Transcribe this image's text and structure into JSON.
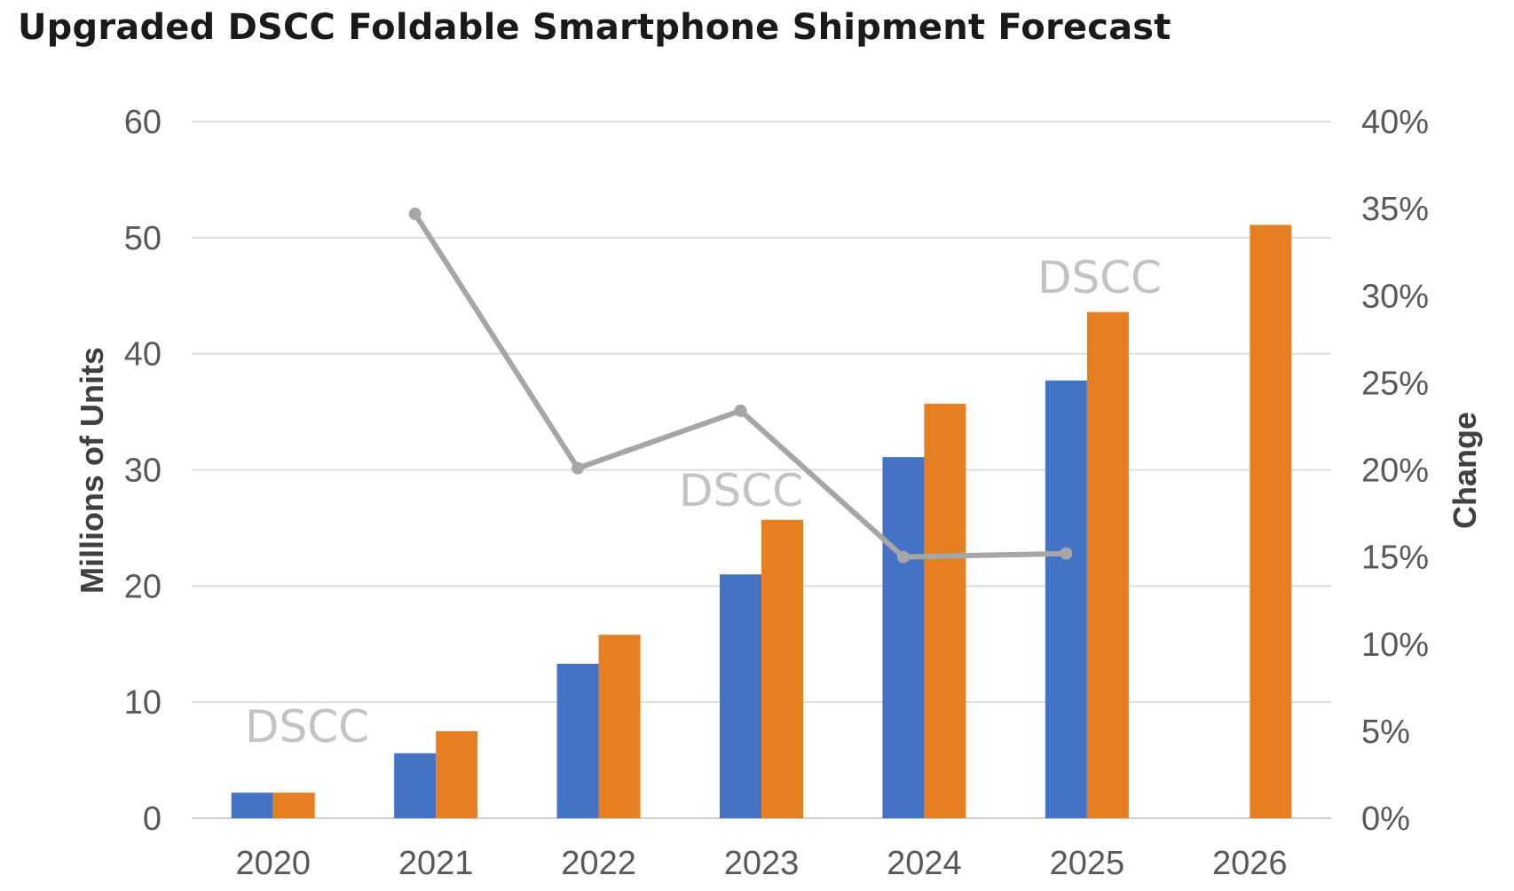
{
  "chart_data": {
    "type": "bar",
    "title": "Upgraded DSCC Foldable Smartphone Shipment Forecast",
    "categories": [
      "2020",
      "2021",
      "2022",
      "2023",
      "2024",
      "2025",
      "2026"
    ],
    "series": [
      {
        "values": [
          2.2,
          5.6,
          13.3,
          21.0,
          31.1,
          37.7,
          null
        ],
        "color": "#4472c4"
      },
      {
        "values": [
          2.2,
          7.5,
          15.8,
          25.7,
          35.7,
          43.6,
          51.1
        ],
        "color": "#e67e22"
      }
    ],
    "line_series": {
      "type": "line",
      "axis": "right",
      "color": "#a6a6a6",
      "values": [
        null,
        34.7,
        20.1,
        23.4,
        15.0,
        15.2,
        null
      ]
    },
    "ylabel": "Millions of Units",
    "y2label": "Change",
    "ylim": [
      0,
      60
    ],
    "y2lim": [
      0,
      40
    ],
    "yticks": [
      "0",
      "10",
      "20",
      "30",
      "40",
      "50",
      "60"
    ],
    "y2ticks": [
      "0%",
      "5%",
      "10%",
      "15%",
      "20%",
      "25%",
      "30%",
      "35%",
      "40%"
    ],
    "grid": true,
    "watermarks": [
      "DSCC",
      "DSCC",
      "DSCC"
    ]
  }
}
